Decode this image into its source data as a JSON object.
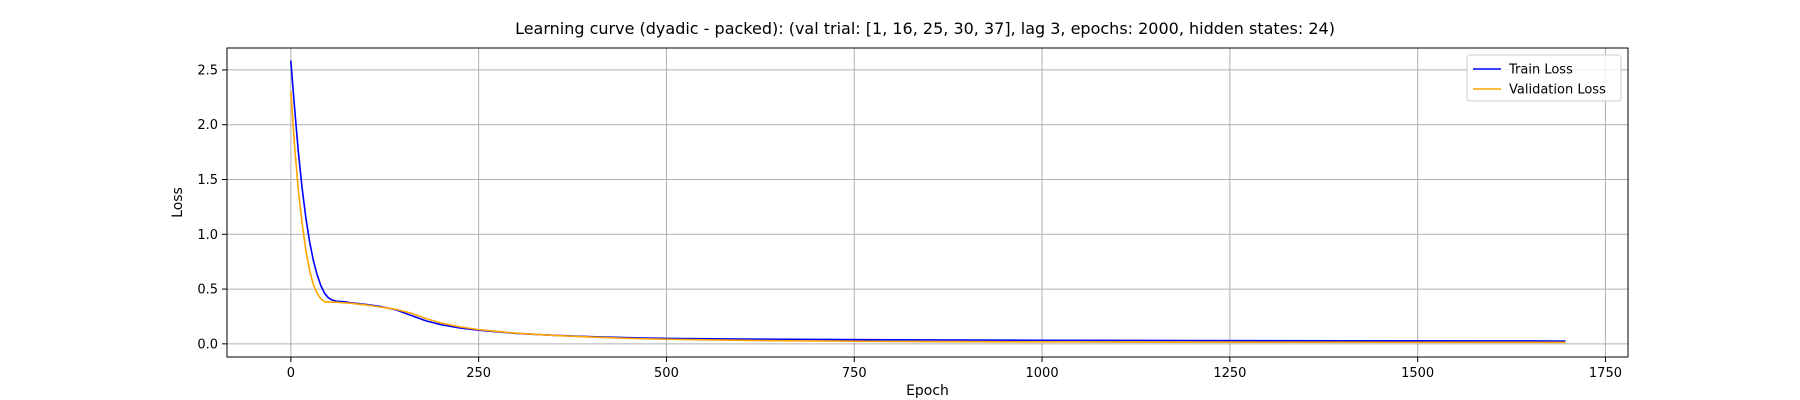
{
  "chart_data": {
    "type": "line",
    "title": "Learning curve (dyadic - packed): (val trial: [1, 16, 25, 30, 37], lag 3, epochs: 2000, hidden states: 24)",
    "xlabel": "Epoch",
    "ylabel": "Loss",
    "xlim": [
      -85,
      1780
    ],
    "ylim": [
      -0.12,
      2.7
    ],
    "xticks": [
      0,
      250,
      500,
      750,
      1000,
      1250,
      1500,
      1750
    ],
    "yticks": [
      0.0,
      0.5,
      1.0,
      1.5,
      2.0,
      2.5
    ],
    "xtick_labels": [
      "0",
      "250",
      "500",
      "750",
      "1000",
      "1250",
      "1500",
      "1750"
    ],
    "ytick_labels": [
      "0.0",
      "0.5",
      "1.0",
      "1.5",
      "2.0",
      "2.5"
    ],
    "grid": true,
    "legend_position": "top-right",
    "series": [
      {
        "name": "Train Loss",
        "color": "#0000ff",
        "x": [
          0,
          5,
          10,
          15,
          20,
          25,
          30,
          35,
          40,
          45,
          50,
          55,
          60,
          70,
          80,
          100,
          120,
          140,
          160,
          180,
          200,
          225,
          250,
          300,
          350,
          400,
          450,
          500,
          600,
          700,
          800,
          1000,
          1200,
          1400,
          1600,
          1696
        ],
        "y": [
          2.58,
          2.15,
          1.75,
          1.42,
          1.15,
          0.93,
          0.76,
          0.63,
          0.53,
          0.46,
          0.42,
          0.4,
          0.39,
          0.385,
          0.375,
          0.36,
          0.34,
          0.31,
          0.26,
          0.21,
          0.175,
          0.145,
          0.125,
          0.095,
          0.078,
          0.065,
          0.056,
          0.05,
          0.044,
          0.04,
          0.037,
          0.033,
          0.03,
          0.028,
          0.027,
          0.026
        ]
      },
      {
        "name": "Validation Loss",
        "color": "#ffa500",
        "x": [
          0,
          5,
          10,
          15,
          20,
          25,
          30,
          35,
          40,
          45,
          50,
          55,
          60,
          70,
          80,
          100,
          120,
          140,
          160,
          180,
          200,
          225,
          250,
          300,
          350,
          400,
          450,
          500,
          600,
          700,
          800,
          1000,
          1200,
          1400,
          1600,
          1696
        ],
        "y": [
          2.3,
          1.8,
          1.4,
          1.1,
          0.85,
          0.67,
          0.54,
          0.46,
          0.41,
          0.385,
          0.38,
          0.38,
          0.38,
          0.375,
          0.37,
          0.355,
          0.335,
          0.315,
          0.28,
          0.23,
          0.19,
          0.155,
          0.13,
          0.097,
          0.077,
          0.062,
          0.05,
          0.042,
          0.032,
          0.026,
          0.022,
          0.018,
          0.016,
          0.015,
          0.014,
          0.014
        ]
      }
    ]
  }
}
